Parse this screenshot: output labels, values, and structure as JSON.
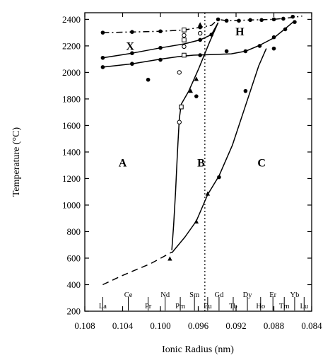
{
  "chart_data": {
    "type": "line",
    "xlabel": "Ionic Radius (nm)",
    "ylabel": "Temperature (°C)",
    "xlim": [
      0.108,
      0.084
    ],
    "ylim": [
      200,
      2450
    ],
    "x_ticks": [
      {
        "v": 0.108,
        "label": "0.108"
      },
      {
        "v": 0.104,
        "label": "0.104"
      },
      {
        "v": 0.1,
        "label": "0.100"
      },
      {
        "v": 0.096,
        "label": "0.096"
      },
      {
        "v": 0.092,
        "label": "0.092"
      },
      {
        "v": 0.088,
        "label": "0.088"
      },
      {
        "v": 0.084,
        "label": "0.084"
      }
    ],
    "y_ticks": [
      {
        "v": 200,
        "label": "200"
      },
      {
        "v": 400,
        "label": "400"
      },
      {
        "v": 600,
        "label": "600"
      },
      {
        "v": 800,
        "label": "800"
      },
      {
        "v": 1000,
        "label": "1000"
      },
      {
        "v": 1200,
        "label": "1200"
      },
      {
        "v": 1400,
        "label": "1400"
      },
      {
        "v": 1600,
        "label": "1600"
      },
      {
        "v": 1800,
        "label": "1800"
      },
      {
        "v": 2000,
        "label": "2000"
      },
      {
        "v": 2200,
        "label": "2200"
      },
      {
        "v": 2400,
        "label": "2400"
      }
    ],
    "elements": [
      {
        "symbol": "La",
        "x": 0.1061,
        "row": "bottom"
      },
      {
        "symbol": "Ce",
        "x": 0.1034,
        "row": "top"
      },
      {
        "symbol": "Pr",
        "x": 0.1013,
        "row": "bottom"
      },
      {
        "symbol": "Nd",
        "x": 0.0995,
        "row": "top"
      },
      {
        "symbol": "Pm",
        "x": 0.0979,
        "row": "bottom"
      },
      {
        "symbol": "Sm",
        "x": 0.0964,
        "row": "top"
      },
      {
        "symbol": "Eu",
        "x": 0.095,
        "row": "bottom"
      },
      {
        "symbol": "Gd",
        "x": 0.0938,
        "row": "top"
      },
      {
        "symbol": "Tb",
        "x": 0.0923,
        "row": "bottom"
      },
      {
        "symbol": "Dy",
        "x": 0.0908,
        "row": "top"
      },
      {
        "symbol": "Ho",
        "x": 0.0894,
        "row": "bottom"
      },
      {
        "symbol": "Er",
        "x": 0.0881,
        "row": "top"
      },
      {
        "symbol": "Tm",
        "x": 0.0869,
        "row": "bottom"
      },
      {
        "symbol": "Yb",
        "x": 0.0858,
        "row": "top"
      },
      {
        "symbol": "Lu",
        "x": 0.0848,
        "row": "bottom"
      }
    ],
    "phase_labels": [
      {
        "text": "X",
        "x": 0.1032,
        "y": 2170
      },
      {
        "text": "H",
        "x": 0.0916,
        "y": 2280
      },
      {
        "text": "A",
        "x": 0.104,
        "y": 1290
      },
      {
        "text": "B",
        "x": 0.0957,
        "y": 1290
      },
      {
        "text": "C",
        "x": 0.0893,
        "y": 1290
      }
    ],
    "curves": [
      {
        "style": "dashdot",
        "points": [
          [
            0.1061,
            2300
          ],
          [
            0.103,
            2305
          ],
          [
            0.1,
            2310
          ],
          [
            0.0975,
            2320
          ],
          [
            0.0958,
            2340
          ],
          [
            0.0946,
            2355
          ],
          [
            0.0939,
            2400
          ],
          [
            0.093,
            2390
          ],
          [
            0.0905,
            2395
          ],
          [
            0.088,
            2400
          ],
          [
            0.086,
            2415
          ],
          [
            0.085,
            2425
          ]
        ]
      },
      {
        "style": "solid",
        "points": [
          [
            0.1061,
            2110
          ],
          [
            0.103,
            2145
          ],
          [
            0.1,
            2185
          ],
          [
            0.0975,
            2215
          ],
          [
            0.0958,
            2245
          ],
          [
            0.0946,
            2285
          ],
          [
            0.0939,
            2375
          ]
        ]
      },
      {
        "style": "solid",
        "points": [
          [
            0.1061,
            2040
          ],
          [
            0.103,
            2065
          ],
          [
            0.1,
            2100
          ],
          [
            0.098,
            2120
          ],
          [
            0.0965,
            2130
          ],
          [
            0.0945,
            2135
          ],
          [
            0.0925,
            2140
          ],
          [
            0.091,
            2160
          ],
          [
            0.0895,
            2205
          ],
          [
            0.088,
            2260
          ],
          [
            0.0868,
            2330
          ],
          [
            0.0858,
            2390
          ]
        ]
      },
      {
        "style": "solid",
        "points": [
          [
            0.0939,
            2375
          ],
          [
            0.0948,
            2230
          ],
          [
            0.096,
            2020
          ],
          [
            0.097,
            1860
          ],
          [
            0.0978,
            1760
          ]
        ]
      },
      {
        "style": "solid",
        "points": [
          [
            0.0978,
            1760
          ],
          [
            0.098,
            1650
          ],
          [
            0.0982,
            1400
          ],
          [
            0.0984,
            1100
          ],
          [
            0.0986,
            850
          ],
          [
            0.0988,
            660
          ]
        ]
      },
      {
        "style": "solid",
        "points": [
          [
            0.0988,
            640
          ],
          [
            0.0974,
            760
          ],
          [
            0.0962,
            880
          ],
          [
            0.095,
            1080
          ],
          [
            0.0938,
            1220
          ],
          [
            0.0924,
            1450
          ],
          [
            0.091,
            1750
          ],
          [
            0.0896,
            2050
          ],
          [
            0.0888,
            2180
          ]
        ]
      },
      {
        "style": "dashed",
        "points": [
          [
            0.1061,
            400
          ],
          [
            0.104,
            470
          ],
          [
            0.101,
            560
          ],
          [
            0.0992,
            630
          ],
          [
            0.0988,
            645
          ]
        ]
      }
    ],
    "markers": {
      "filled": [
        [
          0.1061,
          2300
        ],
        [
          0.103,
          2305
        ],
        [
          0.1,
          2310
        ],
        [
          0.0958,
          2340
        ],
        [
          0.093,
          2390
        ],
        [
          0.0917,
          2390
        ],
        [
          0.0905,
          2395
        ],
        [
          0.0893,
          2395
        ],
        [
          0.088,
          2400
        ],
        [
          0.087,
          2405
        ],
        [
          0.086,
          2420
        ],
        [
          0.1061,
          2110
        ],
        [
          0.103,
          2145
        ],
        [
          0.1,
          2185
        ],
        [
          0.0958,
          2245
        ],
        [
          0.0946,
          2285
        ],
        [
          0.0939,
          2400
        ],
        [
          0.1061,
          2040
        ],
        [
          0.103,
          2065
        ],
        [
          0.1,
          2095
        ],
        [
          0.0958,
          2130
        ],
        [
          0.093,
          2160
        ],
        [
          0.091,
          2160
        ],
        [
          0.0895,
          2200
        ],
        [
          0.088,
          2265
        ],
        [
          0.0868,
          2325
        ],
        [
          0.0858,
          2380
        ],
        [
          0.1013,
          1945
        ],
        [
          0.0962,
          1820
        ],
        [
          0.0938,
          1210
        ],
        [
          0.091,
          1860
        ],
        [
          0.088,
          2180
        ]
      ],
      "open_square": [
        [
          0.0975,
          2320
        ],
        [
          0.0975,
          2245
        ],
        [
          0.0975,
          2130
        ],
        [
          0.0978,
          1740
        ]
      ],
      "open_circle": [
        [
          0.0975,
          2280
        ],
        [
          0.0975,
          2195
        ],
        [
          0.098,
          2000
        ],
        [
          0.098,
          1625
        ],
        [
          0.0958,
          2295
        ]
      ],
      "triangle": [
        [
          0.0958,
          2360
        ],
        [
          0.0962,
          1950
        ],
        [
          0.0968,
          1860
        ],
        [
          0.095,
          1085
        ],
        [
          0.0962,
          875
        ],
        [
          0.099,
          595
        ]
      ]
    },
    "reference_line": {
      "style": "dotted",
      "x": 0.0953
    }
  }
}
